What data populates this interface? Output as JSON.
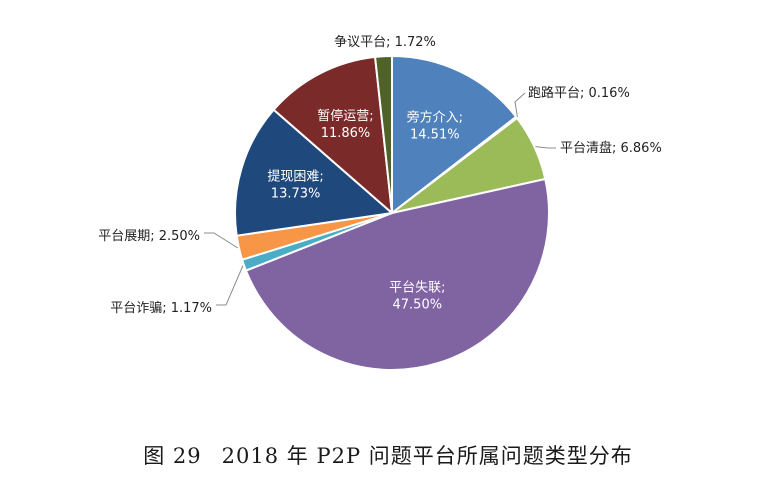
{
  "chart_data": {
    "type": "pie",
    "slices": [
      {
        "label": "旁方介入",
        "value": 14.51,
        "value_text": "14.51%",
        "color": "#4f81bd",
        "label_inside": true,
        "label_color": "#ffffff"
      },
      {
        "label": "跑路平台",
        "value": 0.16,
        "value_text": "0.16%",
        "color": "#4f81bd",
        "label_inside": false,
        "label_color": "#222222"
      },
      {
        "label": "平台清盘",
        "value": 6.86,
        "value_text": "6.86%",
        "color": "#9bbb59",
        "label_inside": false,
        "label_color": "#222222"
      },
      {
        "label": "平台失联",
        "value": 47.5,
        "value_text": "47.50%",
        "color": "#8064a2",
        "label_inside": true,
        "label_color": "#ffffff"
      },
      {
        "label": "平台诈骗",
        "value": 1.17,
        "value_text": "1.17%",
        "color": "#4bacc6",
        "label_inside": false,
        "label_color": "#222222"
      },
      {
        "label": "平台展期",
        "value": 2.5,
        "value_text": "2.50%",
        "color": "#f79646",
        "label_inside": false,
        "label_color": "#222222"
      },
      {
        "label": "提现困难",
        "value": 13.73,
        "value_text": "13.73%",
        "color": "#1f497d",
        "label_inside": true,
        "label_color": "#ffffff"
      },
      {
        "label": "暂停运营",
        "value": 11.86,
        "value_text": "11.86%",
        "color": "#7b2a2a",
        "label_inside": true,
        "label_color": "#ffffff"
      },
      {
        "label": "争议平台",
        "value": 1.72,
        "value_text": "1.72%",
        "color": "#4f6228",
        "label_inside": false,
        "label_color": "#222222"
      }
    ],
    "start_angle_deg": 0,
    "direction": "clockwise"
  },
  "caption": {
    "figure_no": "图 29",
    "text": "2018 年 P2P 问题平台所属问题类型分布"
  }
}
